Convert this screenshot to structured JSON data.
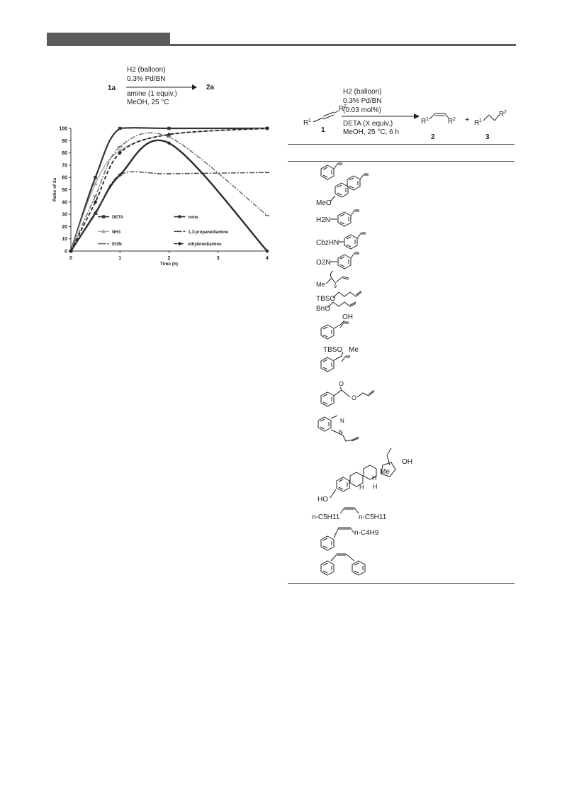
{
  "scheme_left": {
    "reagent_line1": "H2 (balloon)",
    "reagent_line2": "0.3% Pd/BN",
    "reagent_line3": "amine (1 equiv.)",
    "reagent_line4": "MeOH, 25 °C",
    "reactant": "1a",
    "product": "2a"
  },
  "scheme_right": {
    "reagent_line1": "H2 (balloon)",
    "reagent_line2": "0.3% Pd/BN",
    "reagent_line3": "(0.03 mol%)",
    "reagent_line4": "DETA (X equiv.)",
    "reagent_line5": "MeOH, 25 °C, 6 h",
    "label_1": "1",
    "label_2": "2",
    "label_3": "3",
    "plus": "+"
  },
  "chart_data": {
    "type": "line",
    "title": "",
    "xlabel": "Time (h)",
    "ylabel": "Ratio of 2a",
    "xlim": [
      0,
      4
    ],
    "ylim": [
      0,
      100
    ],
    "xticks": [
      0,
      1,
      2,
      3,
      4
    ],
    "yticks": [
      0,
      10,
      20,
      30,
      40,
      50,
      60,
      70,
      80,
      90,
      100
    ],
    "legend_position": "inside-bottom",
    "series": [
      {
        "name": "DETA",
        "x": [
          0,
          0.5,
          1,
          2,
          4
        ],
        "y": [
          0,
          60,
          100,
          100,
          100
        ],
        "style": "solid",
        "width": 2.2,
        "color": "#333333",
        "marker": "square"
      },
      {
        "name": "none",
        "x": [
          0,
          0.5,
          1,
          2,
          4
        ],
        "y": [
          0,
          31,
          62,
          88,
          0
        ],
        "style": "solid",
        "width": 2.4,
        "color": "#2a2a2a",
        "marker": "diamond"
      },
      {
        "name": "NH3",
        "x": [
          0,
          0.5,
          1,
          2,
          4
        ],
        "y": [
          0,
          55,
          82,
          95,
          100
        ],
        "style": "solid",
        "width": 1.2,
        "color": "#9a9a9a",
        "marker": "triangle"
      },
      {
        "name": "1,3-propanediamine",
        "x": [
          0,
          0.5,
          1,
          2,
          4
        ],
        "y": [
          0,
          30,
          62,
          63,
          64
        ],
        "style": "dashdot",
        "width": 1.4,
        "color": "#444444",
        "marker": "dash"
      },
      {
        "name": "Et3N",
        "x": [
          0,
          0.5,
          1,
          2,
          4
        ],
        "y": [
          0,
          45,
          85,
          93,
          29
        ],
        "style": "dashdot",
        "width": 1.4,
        "color": "#666666",
        "marker": "dash"
      },
      {
        "name": "ethylenediamine",
        "x": [
          0,
          0.5,
          1,
          2,
          4
        ],
        "y": [
          0,
          40,
          80,
          95,
          100
        ],
        "style": "dashed",
        "width": 1.8,
        "color": "#222222",
        "marker": "diamond"
      }
    ],
    "legend_labels": [
      "DETA",
      "none",
      "NH3",
      "1,3-propanediamine",
      "Et3N",
      "ethylenediamine"
    ]
  },
  "substrates": [
    "MeO",
    "H2N",
    "CbzHN",
    "O2N",
    "Me",
    "9",
    "TBSO",
    "BnO",
    "OH",
    "TBSO",
    "Me",
    "O",
    "O",
    "N",
    "N",
    "Me",
    "OH",
    "H",
    "H",
    "H",
    "HO",
    "n-C5H11",
    "n-C5H11",
    "n-C4H9"
  ]
}
